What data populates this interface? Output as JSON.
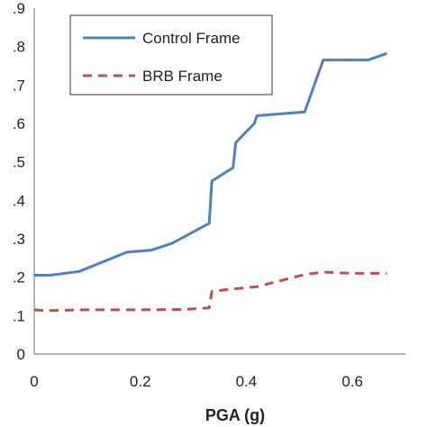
{
  "chart_data": {
    "type": "line",
    "title": "",
    "xlabel": "PGA (g)",
    "ylabel": "",
    "xlim": [
      0,
      0.7
    ],
    "ylim": [
      0,
      0.9
    ],
    "x_ticks": [
      0,
      0.2,
      0.4,
      0.6
    ],
    "x_tick_labels": [
      "0",
      "0.2",
      "0.4",
      "0.6"
    ],
    "y_ticks": [
      0,
      0.1,
      0.2,
      0.3,
      0.4,
      0.5,
      0.6,
      0.7,
      0.8,
      0.9
    ],
    "y_tick_labels": [
      "0",
      ".1",
      ".2",
      ".3",
      ".4",
      ".5",
      ".6",
      ".7",
      ".8",
      ".9"
    ],
    "grid": false,
    "legend_position": "top-left",
    "series": [
      {
        "name": "Control Frame",
        "color": "#4f81bd",
        "style": "solid",
        "x": [
          0,
          0.03,
          0.085,
          0.175,
          0.22,
          0.26,
          0.33,
          0.335,
          0.375,
          0.38,
          0.415,
          0.42,
          0.51,
          0.545,
          0.63,
          0.665
        ],
        "y": [
          0.205,
          0.205,
          0.215,
          0.265,
          0.27,
          0.288,
          0.34,
          0.45,
          0.485,
          0.55,
          0.6,
          0.62,
          0.63,
          0.765,
          0.765,
          0.782
        ]
      },
      {
        "name": "BRB Frame",
        "color": "#c0504d",
        "style": "dashed",
        "x": [
          0,
          0.02,
          0.1,
          0.2,
          0.28,
          0.33,
          0.335,
          0.365,
          0.42,
          0.51,
          0.545,
          0.6,
          0.665
        ],
        "y": [
          0.115,
          0.113,
          0.115,
          0.115,
          0.116,
          0.12,
          0.163,
          0.168,
          0.175,
          0.207,
          0.213,
          0.21,
          0.21
        ]
      }
    ]
  }
}
